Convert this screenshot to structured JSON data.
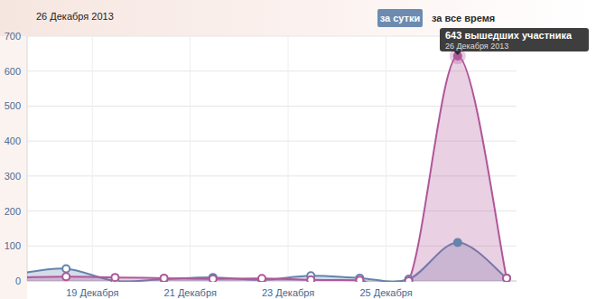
{
  "chart_data": {
    "type": "area",
    "title": "26 Декабря 2013",
    "annotations": [
      "за сутки",
      "за все время",
      "643 вышедших участника",
      "26 Декабря 2013"
    ],
    "categories": [
      null,
      "19 Декабря",
      null,
      "21 Декабря",
      null,
      "23 Декабря",
      null,
      "25 Декабря",
      null,
      null,
      null
    ],
    "series": [
      {
        "color": "#6483ad",
        "values": [
          20,
          35,
          0,
          5,
          10,
          3,
          15,
          8,
          5,
          110,
          8
        ]
      },
      {
        "color": "#b0569a",
        "values": [
          10,
          12,
          10,
          8,
          6,
          7,
          3,
          2,
          0,
          643,
          8
        ]
      }
    ],
    "ylim": [
      0,
      700
    ],
    "yticks": [
      0,
      100,
      200,
      300,
      400,
      500,
      600,
      700
    ],
    "grid": true,
    "stacked": false,
    "marker": "circle"
  }
}
